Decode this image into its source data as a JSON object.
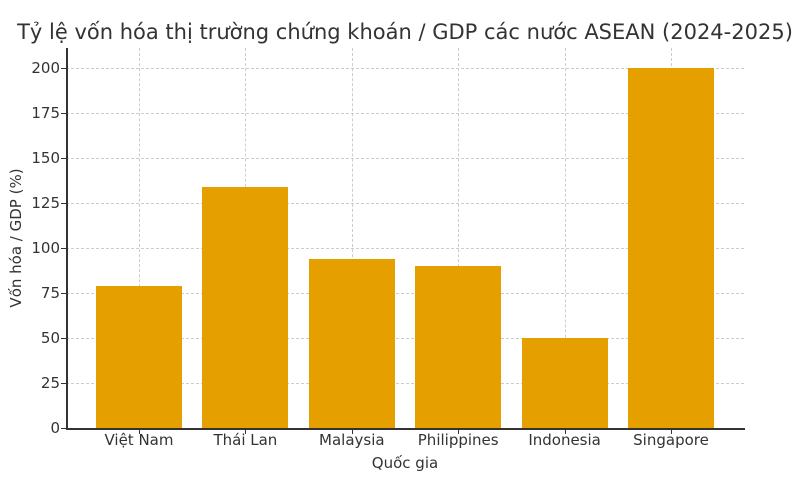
{
  "chart_data": {
    "type": "bar",
    "title": "Tỷ lệ vốn hóa thị trường chứng khoán / GDP các nước ASEAN (2024-2025)",
    "xlabel": "Quốc gia",
    "ylabel": "Vốn hóa / GDP (%)",
    "categories": [
      "Việt Nam",
      "Thái Lan",
      "Malaysia",
      "Philippines",
      "Indonesia",
      "Singapore"
    ],
    "values": [
      79,
      134,
      94,
      90,
      50,
      200
    ],
    "ylim": [
      0,
      210
    ],
    "yticks": [
      "0",
      "25",
      "50",
      "75",
      "100",
      "125",
      "150",
      "175",
      "200"
    ],
    "grid": true,
    "legend": null,
    "bar_color": "#e5a000"
  }
}
